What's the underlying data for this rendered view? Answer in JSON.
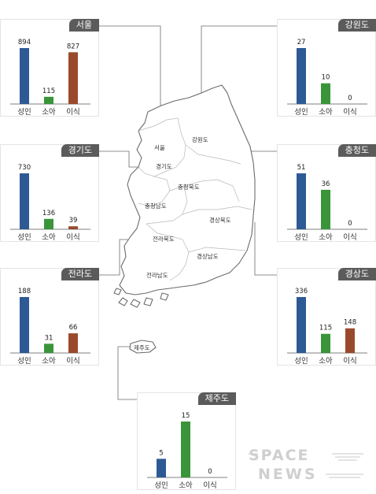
{
  "colors": {
    "adult": "#2d5a94",
    "child": "#3a953a",
    "transplant": "#9a4a2c",
    "tab": "#5b5b5b",
    "connector": "#6b6b6b"
  },
  "regions": {
    "seoul": "서울",
    "gangwon": "강원도",
    "gyeonggi": "경기도",
    "chungcheongbuk": "충청북도",
    "chungcheongnam": "충청남도",
    "gyeongsangbuk": "경상북도",
    "jeollabuk": "전라북도",
    "gyeongsangnam": "경상남도",
    "jeollanam": "전라남도",
    "jeju": "제주도"
  },
  "watermark": {
    "line1": "SPACE",
    "line2": "NEWS"
  },
  "chart_data": [
    {
      "type": "bar",
      "title": "서울",
      "categories": [
        "성인",
        "소아",
        "이식"
      ],
      "values": [
        894,
        115,
        827
      ],
      "ylim": [
        0,
        894
      ]
    },
    {
      "type": "bar",
      "title": "강원도",
      "categories": [
        "성인",
        "소아",
        "이식"
      ],
      "values": [
        27,
        10,
        0
      ],
      "ylim": [
        0,
        27
      ]
    },
    {
      "type": "bar",
      "title": "경기도",
      "categories": [
        "성인",
        "소아",
        "이식"
      ],
      "values": [
        730,
        136,
        39
      ],
      "ylim": [
        0,
        730
      ]
    },
    {
      "type": "bar",
      "title": "충청도",
      "categories": [
        "성인",
        "소아",
        "이식"
      ],
      "values": [
        51,
        36,
        0
      ],
      "ylim": [
        0,
        51
      ]
    },
    {
      "type": "bar",
      "title": "전라도",
      "categories": [
        "성인",
        "소아",
        "이식"
      ],
      "values": [
        188,
        31,
        66
      ],
      "ylim": [
        0,
        188
      ]
    },
    {
      "type": "bar",
      "title": "경상도",
      "categories": [
        "성인",
        "소아",
        "이식"
      ],
      "values": [
        336,
        115,
        148
      ],
      "ylim": [
        0,
        336
      ]
    },
    {
      "type": "bar",
      "title": "제주도",
      "categories": [
        "성인",
        "소아",
        "이식"
      ],
      "values": [
        5,
        15,
        0
      ],
      "ylim": [
        0,
        15
      ]
    }
  ]
}
